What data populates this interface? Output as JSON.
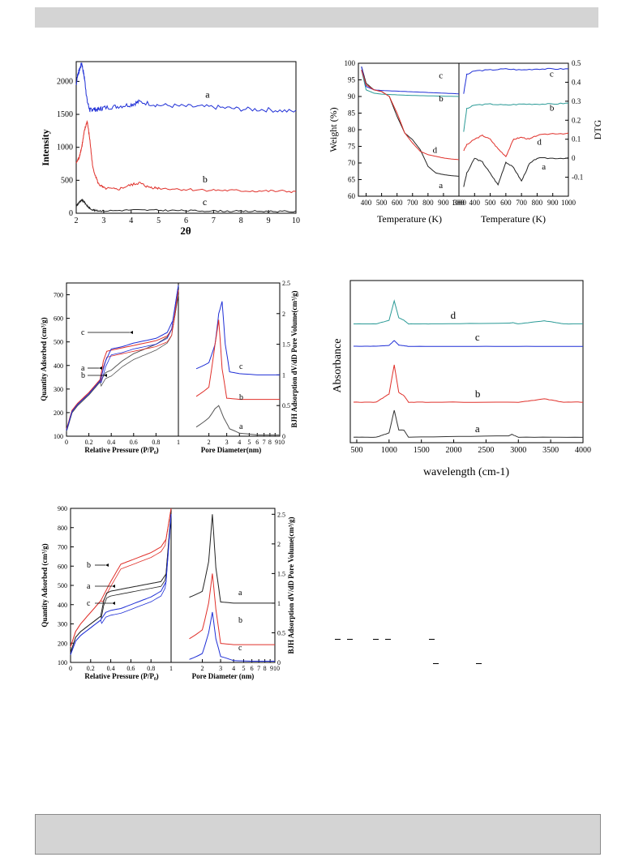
{
  "chart_data": [
    {
      "type": "line",
      "ylabel": "Intensity",
      "xlabel": "2θ",
      "xlim": [
        2,
        10
      ],
      "ylim": [
        0,
        2300
      ],
      "xticks": [
        2,
        3,
        4,
        5,
        6,
        7,
        8,
        9,
        10
      ],
      "yticks": [
        0,
        500,
        1000,
        1500,
        2000
      ],
      "colors": {
        "a": "#1f2fd6",
        "b": "#e0302a",
        "c": "#222222"
      },
      "series": [
        {
          "name": "a",
          "x": [
            2.0,
            2.05,
            2.1,
            2.2,
            2.3,
            2.4,
            2.5,
            2.6,
            2.8,
            3.0,
            3.5,
            4.0,
            4.3,
            5.0,
            6.0,
            7.0,
            8.0,
            9.0,
            10.0
          ],
          "y": [
            1950,
            2100,
            2150,
            2280,
            2050,
            1700,
            1560,
            1580,
            1570,
            1600,
            1620,
            1650,
            1690,
            1640,
            1620,
            1610,
            1580,
            1570,
            1540
          ]
        },
        {
          "name": "b",
          "x": [
            2.0,
            2.1,
            2.2,
            2.3,
            2.4,
            2.5,
            2.6,
            2.8,
            3.0,
            3.5,
            4.0,
            4.3,
            4.6,
            5.0,
            6.0,
            7.0,
            8.0,
            9.0,
            10.0
          ],
          "y": [
            760,
            840,
            1000,
            1250,
            1400,
            1100,
            700,
            450,
            380,
            360,
            430,
            460,
            400,
            380,
            360,
            350,
            340,
            335,
            330
          ]
        },
        {
          "name": "c",
          "x": [
            2.0,
            2.1,
            2.2,
            2.3,
            2.4,
            2.5,
            2.7,
            3.0,
            4.0,
            5.0,
            6.0,
            7.0,
            8.0,
            9.0,
            10.0
          ],
          "y": [
            110,
            160,
            200,
            170,
            110,
            70,
            40,
            35,
            50,
            45,
            40,
            35,
            30,
            30,
            25
          ]
        }
      ]
    },
    {
      "type": "line",
      "ylabel": "Weight (%)",
      "xlabel": "Temperature (K)",
      "xlim": [
        350,
        1000
      ],
      "ylim": [
        60,
        100
      ],
      "xticks": [
        400,
        500,
        600,
        700,
        800,
        900,
        1000
      ],
      "yticks": [
        60,
        65,
        70,
        75,
        80,
        85,
        90,
        95,
        100
      ],
      "colors": {
        "a": "#222222",
        "b": "#2a9a96",
        "c": "#1f2fd6",
        "d": "#e0302a"
      },
      "series": [
        {
          "name": "a",
          "x": [
            370,
            400,
            450,
            500,
            550,
            600,
            650,
            700,
            750,
            800,
            850,
            900,
            950,
            1000
          ],
          "y": [
            99,
            94,
            92,
            91.5,
            90,
            84,
            79,
            77,
            74,
            69,
            67,
            66.5,
            66.2,
            66
          ]
        },
        {
          "name": "b",
          "x": [
            370,
            400,
            450,
            500,
            600,
            700,
            800,
            900,
            1000
          ],
          "y": [
            98,
            92,
            91,
            90.7,
            90.5,
            90.3,
            90.2,
            90.1,
            90
          ]
        },
        {
          "name": "c",
          "x": [
            370,
            400,
            450,
            500,
            600,
            700,
            800,
            900,
            1000
          ],
          "y": [
            99,
            93,
            92,
            91.8,
            91.6,
            91.4,
            91.2,
            91.0,
            90.8
          ]
        },
        {
          "name": "d",
          "x": [
            370,
            400,
            450,
            500,
            550,
            600,
            650,
            700,
            750,
            800,
            850,
            900,
            950,
            1000
          ],
          "y": [
            98,
            93.5,
            92,
            91.5,
            90,
            85,
            79,
            76,
            73.5,
            72.5,
            72,
            71.5,
            71.2,
            71
          ]
        }
      ]
    },
    {
      "type": "line",
      "ylabel": "DTG",
      "xlabel": "Temperature (K)",
      "xlim": [
        300,
        1000
      ],
      "ylim": [
        -0.2,
        0.5
      ],
      "xticks": [
        300,
        400,
        500,
        600,
        700,
        800,
        900,
        1000
      ],
      "yticks": [
        -0.1,
        0.0,
        0.1,
        0.2,
        0.3,
        0.4,
        0.5
      ],
      "colors": {
        "a": "#222222",
        "b": "#2a9a96",
        "c": "#1f2fd6",
        "d": "#e0302a"
      },
      "series": [
        {
          "name": "c",
          "x": [
            330,
            350,
            400,
            500,
            600,
            700,
            800,
            900,
            1000
          ],
          "y": [
            0.34,
            0.44,
            0.46,
            0.465,
            0.47,
            0.465,
            0.47,
            0.47,
            0.47
          ]
        },
        {
          "name": "b",
          "x": [
            330,
            350,
            400,
            500,
            600,
            700,
            800,
            900,
            1000
          ],
          "y": [
            0.14,
            0.26,
            0.28,
            0.285,
            0.28,
            0.285,
            0.285,
            0.285,
            0.29
          ]
        },
        {
          "name": "d",
          "x": [
            330,
            350,
            400,
            450,
            500,
            550,
            600,
            650,
            700,
            750,
            800,
            900,
            1000
          ],
          "y": [
            0.04,
            0.07,
            0.1,
            0.12,
            0.1,
            0.05,
            0.01,
            0.1,
            0.11,
            0.1,
            0.12,
            0.13,
            0.13
          ]
        },
        {
          "name": "a",
          "x": [
            330,
            350,
            400,
            450,
            500,
            550,
            600,
            650,
            700,
            750,
            800,
            900,
            1000
          ],
          "y": [
            -0.15,
            -0.08,
            0.0,
            -0.02,
            -0.08,
            -0.14,
            -0.02,
            -0.05,
            -0.12,
            -0.03,
            0.0,
            0.0,
            0.0
          ]
        }
      ]
    },
    {
      "type": "line",
      "ylabel": "Quantity Adsorbed (cm³/g)",
      "xlabel": "Relative Pressure (P/P₀)",
      "xlim": [
        0,
        1.0
      ],
      "ylim": [
        100,
        750
      ],
      "xticks": [
        0.0,
        0.2,
        0.4,
        0.6,
        0.8,
        1.0
      ],
      "yticks": [
        100,
        200,
        300,
        400,
        500,
        600,
        700
      ],
      "colors": {
        "a": "#555555",
        "b": "#e0302a",
        "c": "#1f2fd6"
      },
      "series": [
        {
          "name": "a",
          "x": [
            0.0,
            0.05,
            0.1,
            0.2,
            0.3,
            0.35,
            0.4,
            0.5,
            0.6,
            0.7,
            0.8,
            0.9,
            0.95,
            1.0
          ],
          "y": [
            120,
            200,
            230,
            275,
            330,
            370,
            380,
            420,
            450,
            470,
            490,
            520,
            560,
            700
          ]
        },
        {
          "name": "b",
          "x": [
            0.0,
            0.05,
            0.1,
            0.2,
            0.3,
            0.33,
            0.36,
            0.4,
            0.5,
            0.6,
            0.7,
            0.8,
            0.9,
            0.95,
            1.0
          ],
          "y": [
            130,
            210,
            240,
            285,
            340,
            420,
            460,
            465,
            475,
            485,
            495,
            505,
            525,
            560,
            720
          ]
        },
        {
          "name": "c",
          "x": [
            0.0,
            0.05,
            0.1,
            0.2,
            0.3,
            0.35,
            0.4,
            0.5,
            0.6,
            0.7,
            0.8,
            0.9,
            0.95,
            1.0
          ],
          "y": [
            125,
            205,
            235,
            280,
            335,
            420,
            470,
            480,
            495,
            505,
            515,
            540,
            590,
            740
          ]
        }
      ],
      "labels": [
        "c",
        "b",
        "a"
      ]
    },
    {
      "type": "line",
      "ylabel": "BJH Adsorption dV/dD Pore Volume(cm³/g)",
      "xlabel": "Pore Diameter(nm)",
      "xlim": [
        1,
        10
      ],
      "ylim": [
        0,
        2.5
      ],
      "xticks": [
        2,
        3,
        4,
        5,
        6,
        7,
        8,
        9,
        10
      ],
      "yticks": [
        0.0,
        0.5,
        1.0,
        1.5,
        2.0,
        2.5
      ],
      "colors": {
        "a": "#555555",
        "b": "#e0302a",
        "c": "#1f2fd6"
      },
      "series": [
        {
          "name": "c",
          "x": [
            1.5,
            2.0,
            2.3,
            2.5,
            2.7,
            2.9,
            3.2,
            4,
            6,
            10
          ],
          "y": [
            1.1,
            1.2,
            1.5,
            2.0,
            2.2,
            1.5,
            1.05,
            1.02,
            1.0,
            1.0
          ]
        },
        {
          "name": "b",
          "x": [
            1.5,
            2.0,
            2.3,
            2.5,
            2.7,
            3.0,
            4,
            6,
            10
          ],
          "y": [
            0.65,
            0.8,
            1.5,
            1.9,
            1.1,
            0.62,
            0.6,
            0.6,
            0.6
          ]
        },
        {
          "name": "a",
          "x": [
            1.5,
            2.0,
            2.3,
            2.5,
            2.8,
            3.2,
            4,
            6,
            10
          ],
          "y": [
            0.15,
            0.3,
            0.45,
            0.5,
            0.3,
            0.12,
            0.05,
            0.02,
            0.02
          ]
        }
      ]
    },
    {
      "type": "line",
      "ylabel": "Absorbance",
      "xlabel": "wavelength (cm-1)",
      "xlim": [
        400,
        4000
      ],
      "xticks": [
        500,
        1000,
        1500,
        2000,
        2500,
        3000,
        3500,
        4000
      ],
      "colors": {
        "a": "#333333",
        "b": "#e0302a",
        "c": "#1f2fd6",
        "d": "#2a9a96"
      },
      "series": [
        {
          "name": "d",
          "offset": 3,
          "x": [
            450,
            800,
            1000,
            1080,
            1150,
            1230,
            1300,
            1650,
            2850,
            2920,
            3000,
            3400,
            3700,
            4000
          ],
          "y": [
            0.05,
            0.05,
            0.2,
            1.0,
            0.3,
            0.2,
            0.05,
            0.05,
            0.08,
            0.1,
            0.05,
            0.18,
            0.05,
            0.05
          ]
        },
        {
          "name": "c",
          "offset": 2,
          "x": [
            450,
            800,
            1000,
            1080,
            1150,
            1230,
            1300,
            2000,
            3000,
            4000
          ],
          "y": [
            0.05,
            0.05,
            0.1,
            0.4,
            0.12,
            0.08,
            0.04,
            0.04,
            0.04,
            0.04
          ]
        },
        {
          "name": "b",
          "offset": 1,
          "x": [
            450,
            800,
            1000,
            1080,
            1150,
            1230,
            1300,
            1650,
            3000,
            3400,
            3700,
            4000
          ],
          "y": [
            0.05,
            0.05,
            0.3,
            1.2,
            0.35,
            0.25,
            0.05,
            0.05,
            0.05,
            0.15,
            0.05,
            0.05
          ]
        },
        {
          "name": "a",
          "offset": 0,
          "x": [
            450,
            800,
            1000,
            1080,
            1150,
            1230,
            1300,
            2850,
            2900,
            2930,
            3000,
            4000
          ],
          "y": [
            0.05,
            0.05,
            0.2,
            1.0,
            0.3,
            0.3,
            0.05,
            0.1,
            0.15,
            0.12,
            0.05,
            0.05
          ]
        }
      ]
    },
    {
      "type": "line",
      "ylabel": "Quantity Adsorbed (cm³/g)",
      "xlabel": "Relative Pressure (P/P₀)",
      "xlim": [
        0,
        1.0
      ],
      "ylim": [
        100,
        900
      ],
      "xticks": [
        0.0,
        0.2,
        0.4,
        0.6,
        0.8,
        1.0
      ],
      "yticks": [
        100,
        200,
        300,
        400,
        500,
        600,
        700,
        800,
        900
      ],
      "colors": {
        "a": "#222222",
        "b": "#e0302a",
        "c": "#1f2fd6"
      },
      "series": [
        {
          "name": "b",
          "x": [
            0.0,
            0.05,
            0.1,
            0.2,
            0.3,
            0.4,
            0.5,
            0.6,
            0.7,
            0.8,
            0.9,
            0.95,
            1.0
          ],
          "y": [
            180,
            260,
            300,
            360,
            420,
            520,
            610,
            630,
            650,
            670,
            700,
            740,
            900
          ]
        },
        {
          "name": "a",
          "x": [
            0.0,
            0.05,
            0.1,
            0.2,
            0.3,
            0.33,
            0.36,
            0.4,
            0.5,
            0.6,
            0.7,
            0.8,
            0.9,
            0.95,
            1.0
          ],
          "y": [
            150,
            230,
            260,
            300,
            340,
            420,
            460,
            470,
            480,
            490,
            500,
            510,
            520,
            560,
            880
          ]
        },
        {
          "name": "c",
          "x": [
            0.0,
            0.05,
            0.1,
            0.2,
            0.3,
            0.35,
            0.4,
            0.5,
            0.6,
            0.7,
            0.8,
            0.9,
            0.95,
            1.0
          ],
          "y": [
            140,
            210,
            240,
            280,
            320,
            360,
            370,
            380,
            400,
            420,
            440,
            470,
            520,
            870
          ]
        }
      ],
      "labels": [
        "b",
        "a",
        "c"
      ]
    },
    {
      "type": "line",
      "ylabel": "BJH Adsorption dV/dD Pore Volume(cm³/g)",
      "xlabel": "Pore Diameter (nm)",
      "xlim": [
        1,
        10
      ],
      "ylim": [
        0,
        2.6
      ],
      "xticks": [
        2,
        3,
        4,
        5,
        6,
        7,
        8,
        9,
        10
      ],
      "yticks": [
        0.0,
        0.5,
        1.0,
        1.5,
        2.0,
        2.5
      ],
      "colors": {
        "a": "#222222",
        "b": "#e0302a",
        "c": "#1f2fd6"
      },
      "series": [
        {
          "name": "a",
          "x": [
            1.5,
            2.0,
            2.3,
            2.5,
            2.7,
            3.0,
            4,
            6,
            10
          ],
          "y": [
            1.1,
            1.2,
            1.7,
            2.5,
            1.6,
            1.02,
            1.0,
            1.0,
            1.0
          ]
        },
        {
          "name": "b",
          "x": [
            1.5,
            2.0,
            2.3,
            2.5,
            2.7,
            3.0,
            4,
            6,
            10
          ],
          "y": [
            0.4,
            0.55,
            1.0,
            1.5,
            0.9,
            0.32,
            0.3,
            0.3,
            0.3
          ]
        },
        {
          "name": "c",
          "x": [
            1.5,
            2.0,
            2.3,
            2.5,
            2.7,
            3.0,
            4,
            6,
            10
          ],
          "y": [
            0.05,
            0.15,
            0.5,
            0.85,
            0.4,
            0.1,
            0.03,
            0.02,
            0.02
          ]
        }
      ]
    }
  ]
}
